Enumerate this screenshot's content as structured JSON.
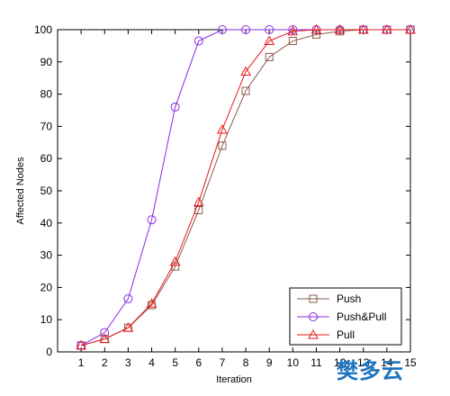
{
  "chart_data": {
    "type": "line",
    "xlabel": "Iteration",
    "ylabel": "Affected Nodes",
    "xlim": [
      0,
      15
    ],
    "ylim": [
      0,
      100
    ],
    "x_ticks": [
      1,
      2,
      3,
      4,
      5,
      6,
      7,
      8,
      9,
      10,
      11,
      12,
      13,
      14,
      15
    ],
    "y_ticks": [
      0,
      10,
      20,
      30,
      40,
      50,
      60,
      70,
      80,
      90,
      100
    ],
    "grid": false,
    "legend_position": "bottom-right",
    "x": [
      1,
      2,
      3,
      4,
      5,
      6,
      7,
      8,
      9,
      10,
      11,
      12,
      13,
      14,
      15
    ],
    "series": [
      {
        "name": "Push",
        "color": "#8b5a4a",
        "marker": "square",
        "values": [
          2,
          4,
          7.5,
          14.5,
          26.5,
          44,
          64,
          81,
          91.5,
          96.5,
          98.5,
          99.5,
          100,
          100,
          100
        ]
      },
      {
        "name": "Push&Pull",
        "color": "#8a2be2",
        "marker": "circle",
        "values": [
          2,
          6,
          16.5,
          41,
          76,
          96.5,
          100,
          100,
          100,
          100,
          100,
          100,
          100,
          100,
          100
        ]
      },
      {
        "name": "Pull",
        "color": "#e8191a",
        "marker": "triangle",
        "values": [
          2,
          4,
          7.5,
          15,
          28,
          46.5,
          69,
          87,
          96.5,
          99.5,
          100,
          100,
          100,
          100,
          100
        ]
      }
    ]
  },
  "watermark_text": "樊多云"
}
